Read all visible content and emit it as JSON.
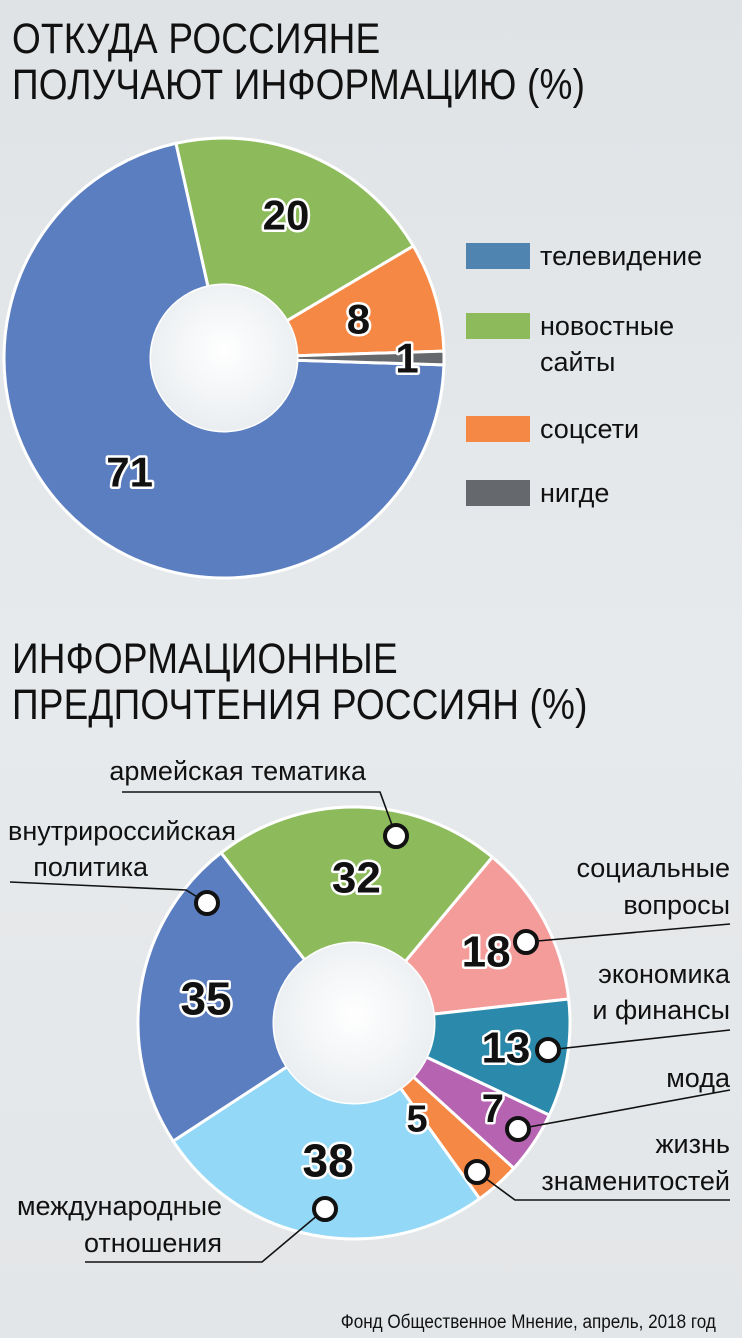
{
  "title1_line1": "ОТКУДА РОССИЯНЕ",
  "title1_line2": "ПОЛУЧАЮТ ИНФОРМАЦИЮ (%)",
  "title2_line1": "ИНФОРМАЦИОННЫЕ",
  "title2_line2": "ПРЕДПОЧТЕНИЯ РОССИЯН (%)",
  "source": "Фонд Общественное Мнение, апрель, 2018 год",
  "chart_data": [
    {
      "type": "pie",
      "title": "ОТКУДА РОССИЯНЕ ПОЛУЧАЮТ ИНФОРМАЦИЮ (%)",
      "legend_position": "right",
      "slices": [
        {
          "label": "телевидение",
          "value": 71,
          "color": "#5b7ec1"
        },
        {
          "label": "новостные сайты",
          "value": 20,
          "color": "#8dbb5c"
        },
        {
          "label": "соцсети",
          "value": 8,
          "color": "#f58845"
        },
        {
          "label": "нигде",
          "value": 1,
          "color": "#65686c"
        }
      ],
      "legend": [
        {
          "lines": [
            "телевидение"
          ],
          "color": "#4f83b0"
        },
        {
          "lines": [
            "новостные",
            "сайты"
          ],
          "color": "#8dbb5c"
        },
        {
          "lines": [
            "соцсети"
          ],
          "color": "#f58845"
        },
        {
          "lines": [
            "нигде"
          ],
          "color": "#65686c"
        }
      ]
    },
    {
      "type": "pie",
      "title": "ИНФОРМАЦИОННЫЕ ПРЕДПОЧТЕНИЯ РОССИЯН (%)",
      "slices": [
        {
          "label": "армейская тематика",
          "lines": [
            "армейская тематика"
          ],
          "value": 32,
          "color": "#8dbb5c"
        },
        {
          "label": "социальные вопросы",
          "lines": [
            "социальные",
            "вопросы"
          ],
          "value": 18,
          "color": "#f49c9a"
        },
        {
          "label": "экономика и финансы",
          "lines": [
            "экономика",
            "и финансы"
          ],
          "value": 13,
          "color": "#2b8aab"
        },
        {
          "label": "мода",
          "lines": [
            "мода"
          ],
          "value": 7,
          "color": "#b664b2"
        },
        {
          "label": "жизнь знаменитостей",
          "lines": [
            "жизнь",
            "знаменитостей"
          ],
          "value": 5,
          "color": "#f58845"
        },
        {
          "label": "международные отношения",
          "lines": [
            "международные",
            "отношения"
          ],
          "value": 38,
          "color": "#93d8f6"
        },
        {
          "label": "внутрироссийская политика",
          "lines": [
            "внутрироссийская",
            "политика"
          ],
          "value": 35,
          "color": "#5b7ec1"
        }
      ]
    }
  ]
}
